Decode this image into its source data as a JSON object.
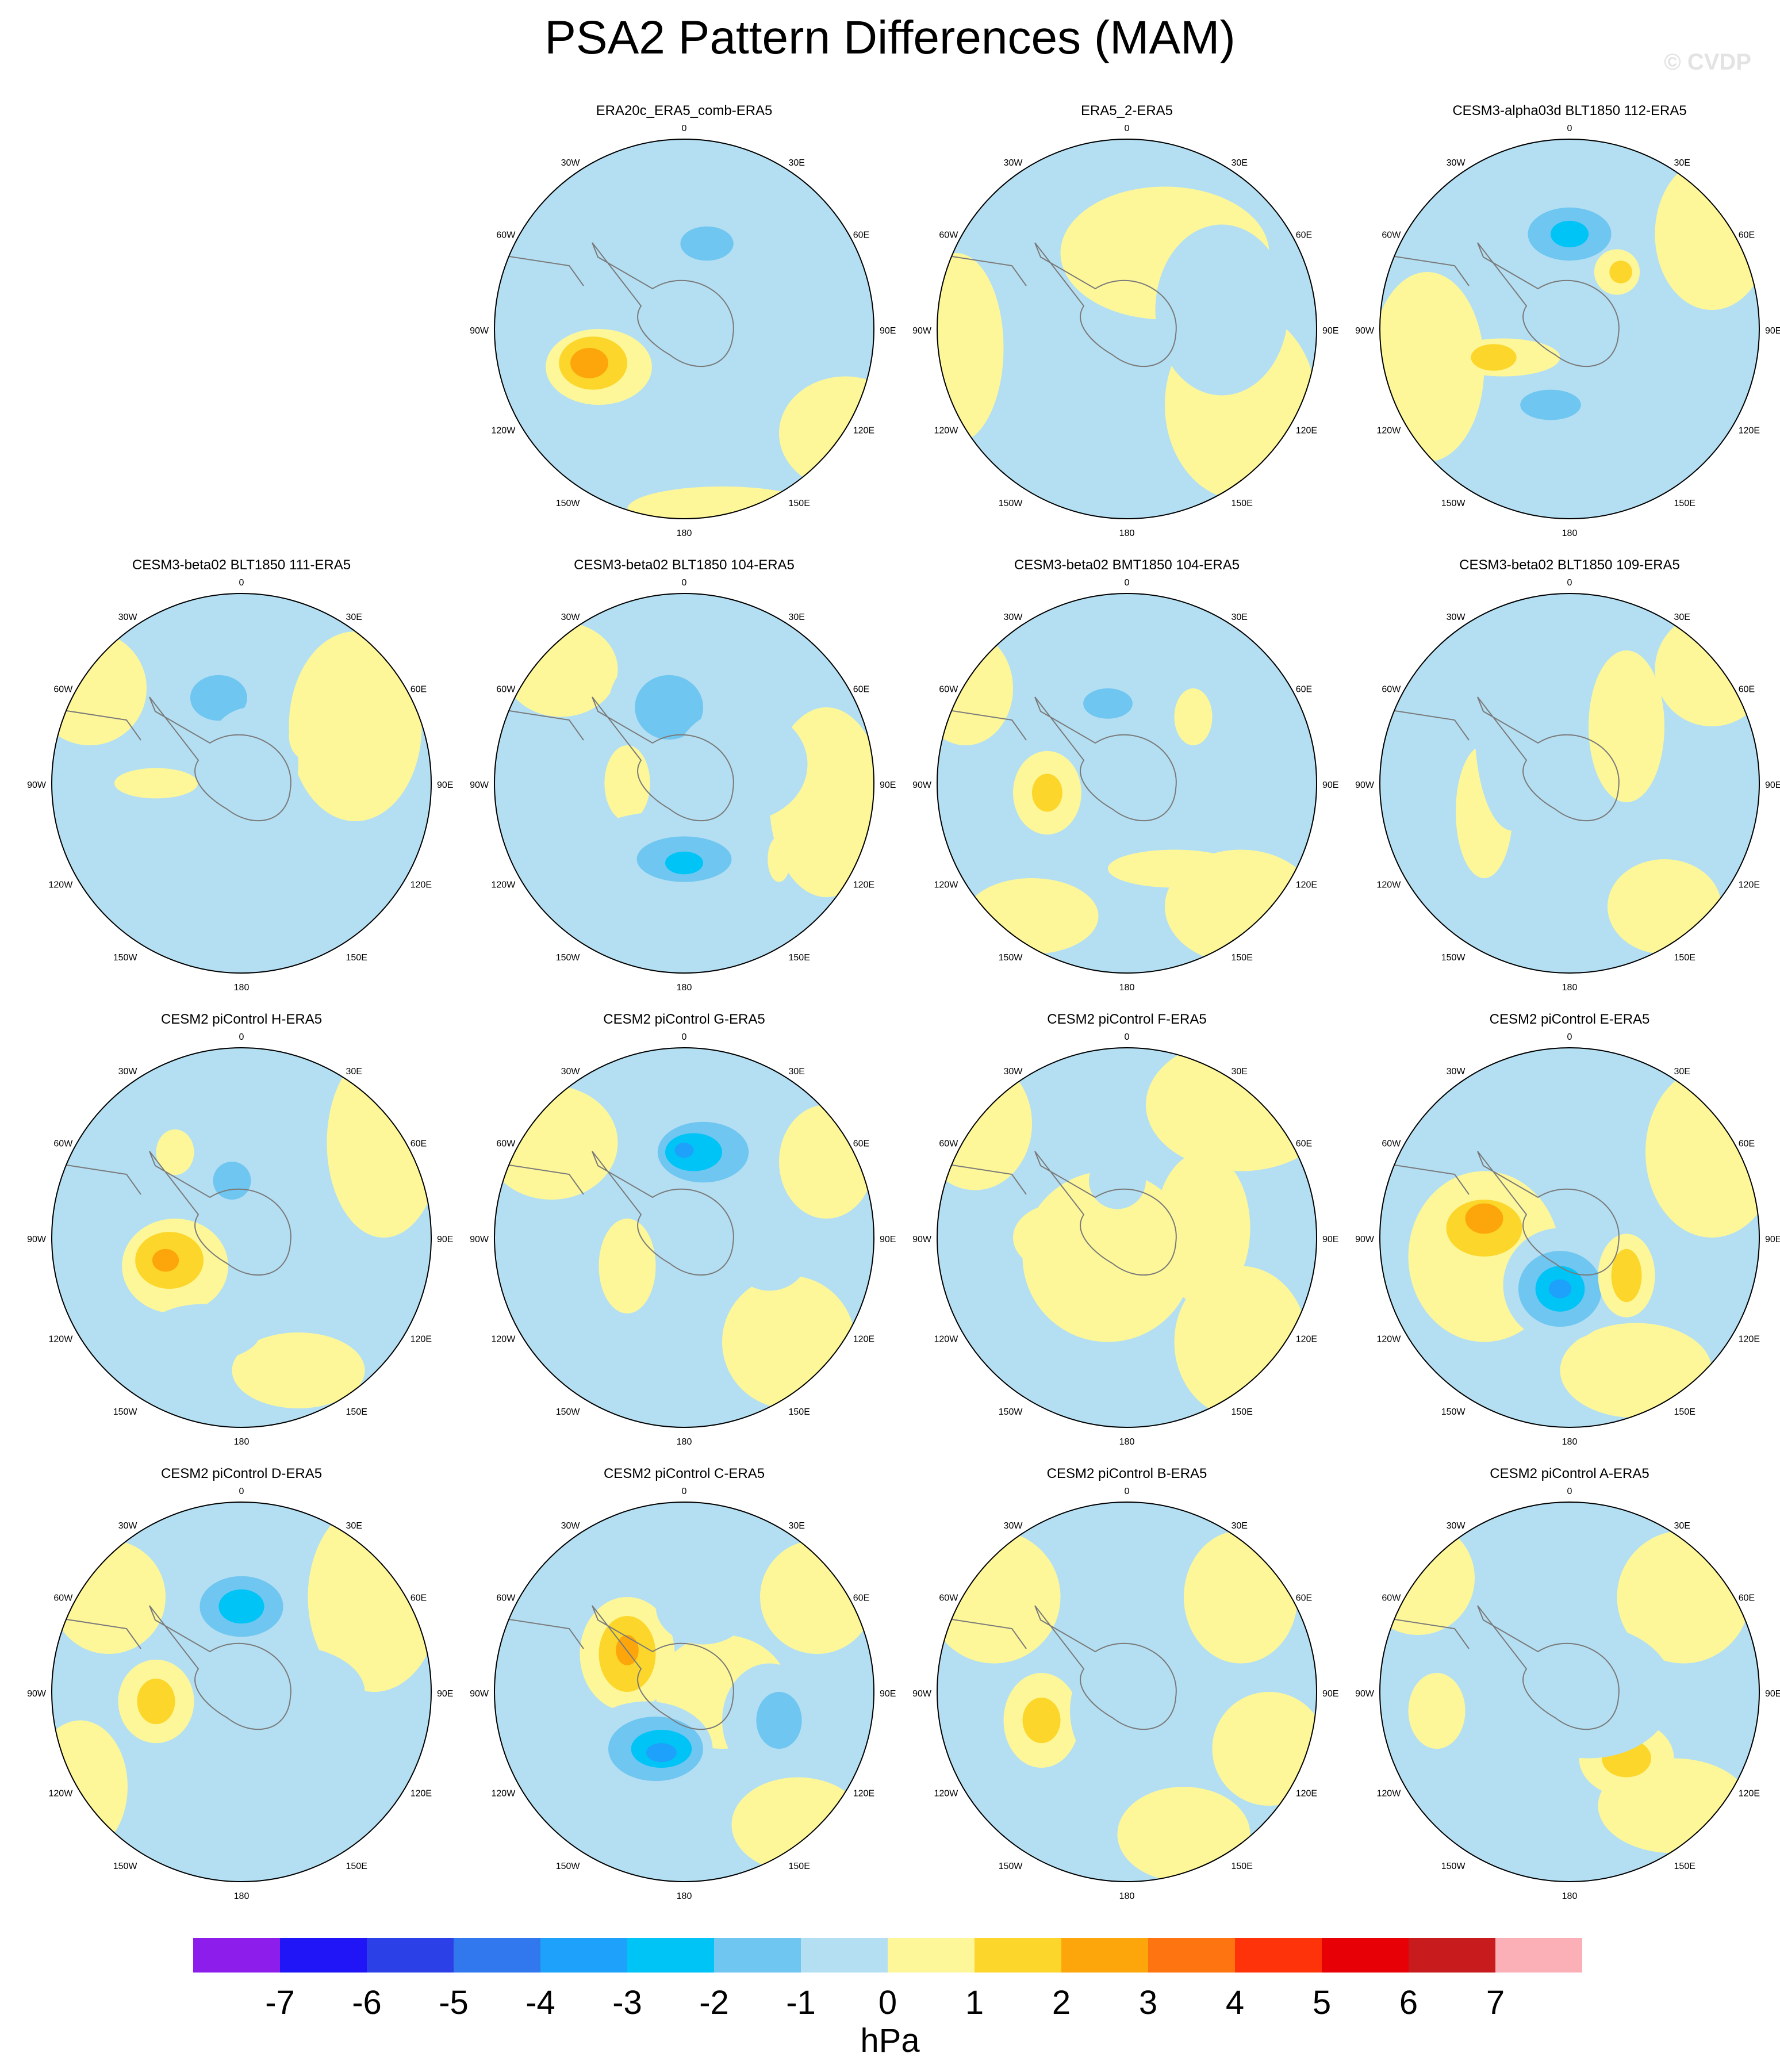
{
  "title": "PSA2 Pattern Differences (MAM)",
  "watermark": "© CVDP",
  "map_labels": {
    "top": "0",
    "bottom": "180",
    "left": "90W",
    "right": "90E",
    "ul1": "30W",
    "ur1": "30E",
    "ul2": "60W",
    "ur2": "60E",
    "ll1": "120W",
    "lr1": "120E",
    "ll2": "150W",
    "lr2": "150E"
  },
  "panels": [
    {
      "title": "ERA20c_ERA5_comb-ERA5",
      "blobs": [
        [
          -0.45,
          0.2,
          0.28,
          0.2,
          1
        ],
        [
          -0.48,
          0.18,
          0.18,
          0.14,
          2
        ],
        [
          -0.5,
          0.18,
          0.1,
          0.08,
          3
        ],
        [
          0.1,
          -0.45,
          0.25,
          0.16,
          -1
        ],
        [
          0.12,
          -0.45,
          0.14,
          0.09,
          -2
        ],
        [
          0.1,
          0.5,
          0.4,
          0.15,
          -1
        ]
      ],
      "land": [
        [
          0.85,
          0.55,
          0.35,
          0.3
        ],
        [
          0.2,
          0.95,
          0.5,
          0.12
        ]
      ]
    },
    {
      "title": "ERA5_2-ERA5",
      "blobs": [
        [
          0.2,
          -0.4,
          0.55,
          0.35,
          1
        ],
        [
          -0.1,
          0.5,
          0.3,
          0.25,
          -1
        ],
        [
          0.5,
          -0.1,
          0.35,
          0.45,
          -1
        ]
      ],
      "land": [
        [
          0.6,
          0.4,
          0.4,
          0.5
        ],
        [
          -0.9,
          0.1,
          0.25,
          0.5
        ]
      ]
    },
    {
      "title": "CESM3-alpha03d BLT1850 112-ERA5",
      "blobs": [
        [
          0.0,
          -0.5,
          0.35,
          0.22,
          -1
        ],
        [
          0.0,
          -0.5,
          0.22,
          0.14,
          -2
        ],
        [
          0.0,
          -0.5,
          0.1,
          0.07,
          -3
        ],
        [
          -0.35,
          0.15,
          0.3,
          0.1,
          1
        ],
        [
          -0.4,
          0.15,
          0.12,
          0.07,
          2
        ],
        [
          -0.1,
          0.4,
          0.3,
          0.14,
          -1
        ],
        [
          -0.1,
          0.4,
          0.16,
          0.08,
          -2
        ],
        [
          0.5,
          0.1,
          0.15,
          0.22,
          -1
        ],
        [
          0.25,
          -0.3,
          0.12,
          0.12,
          1
        ],
        [
          0.27,
          -0.3,
          0.06,
          0.06,
          2
        ]
      ],
      "land": [
        [
          -0.75,
          0.2,
          0.3,
          0.5
        ],
        [
          0.75,
          -0.5,
          0.3,
          0.4
        ]
      ]
    },
    {
      "title": "CESM3-beta02 BLT1850 111-ERA5",
      "blobs": [
        [
          -0.1,
          -0.45,
          0.3,
          0.22,
          -1
        ],
        [
          -0.12,
          -0.45,
          0.15,
          0.12,
          -2
        ],
        [
          -0.45,
          0.0,
          0.22,
          0.08,
          1
        ],
        [
          -0.2,
          0.35,
          0.55,
          0.18,
          -1
        ],
        [
          0.05,
          -0.1,
          0.25,
          0.3,
          -1
        ],
        [
          0.35,
          -0.25,
          0.1,
          0.13,
          1
        ]
      ],
      "land": [
        [
          -0.8,
          -0.5,
          0.3,
          0.3
        ],
        [
          0.6,
          -0.3,
          0.35,
          0.5
        ]
      ]
    },
    {
      "title": "CESM3-beta02 BLT1850 104-ERA5",
      "blobs": [
        [
          -0.1,
          -0.4,
          0.3,
          0.3,
          -1
        ],
        [
          -0.08,
          -0.4,
          0.18,
          0.17,
          -2
        ],
        [
          -0.3,
          0.0,
          0.12,
          0.2,
          1
        ],
        [
          -0.1,
          0.35,
          0.45,
          0.2,
          -1
        ],
        [
          0.0,
          0.4,
          0.25,
          0.12,
          -2
        ],
        [
          0.0,
          0.42,
          0.1,
          0.06,
          -3
        ],
        [
          0.5,
          0.4,
          0.06,
          0.12,
          1
        ],
        [
          0.3,
          -0.1,
          0.35,
          0.3,
          -1
        ]
      ],
      "land": [
        [
          -0.65,
          -0.6,
          0.3,
          0.25
        ],
        [
          0.75,
          0.1,
          0.3,
          0.5
        ]
      ]
    },
    {
      "title": "CESM3-beta02 BMT1850 104-ERA5",
      "blobs": [
        [
          -0.1,
          -0.4,
          0.28,
          0.2,
          -1
        ],
        [
          -0.1,
          -0.42,
          0.13,
          0.08,
          -2
        ],
        [
          -0.42,
          0.05,
          0.18,
          0.22,
          1
        ],
        [
          -0.42,
          0.05,
          0.08,
          0.1,
          2
        ],
        [
          0.25,
          0.45,
          0.35,
          0.1,
          1
        ],
        [
          0.5,
          0.0,
          0.12,
          0.1,
          -1
        ],
        [
          0.35,
          -0.35,
          0.1,
          0.15,
          1
        ],
        [
          0.0,
          0.2,
          0.15,
          0.15,
          -1
        ]
      ],
      "land": [
        [
          -0.85,
          -0.5,
          0.25,
          0.3
        ],
        [
          0.6,
          0.65,
          0.4,
          0.3
        ],
        [
          -0.5,
          0.7,
          0.35,
          0.2
        ]
      ]
    },
    {
      "title": "CESM3-beta02 BLT1850 109-ERA5",
      "blobs": [
        [
          0.55,
          0.0,
          0.18,
          0.32,
          -1
        ],
        [
          0.0,
          -0.5,
          0.2,
          0.15,
          -1
        ],
        [
          -0.45,
          0.15,
          0.15,
          0.35,
          1
        ],
        [
          0.0,
          0.35,
          0.12,
          0.15,
          -1
        ],
        [
          -0.3,
          -0.3,
          0.2,
          0.55,
          -1
        ],
        [
          0.3,
          -0.3,
          0.2,
          0.4,
          1
        ]
      ],
      "land": [
        [
          0.75,
          -0.6,
          0.3,
          0.3
        ],
        [
          0.5,
          0.65,
          0.3,
          0.25
        ]
      ]
    },
    {
      "title": "CESM2 piControl H-ERA5",
      "blobs": [
        [
          -0.35,
          0.15,
          0.28,
          0.25,
          1
        ],
        [
          -0.38,
          0.12,
          0.18,
          0.15,
          2
        ],
        [
          -0.4,
          0.12,
          0.07,
          0.06,
          3
        ],
        [
          0.0,
          -0.3,
          0.22,
          0.2,
          -1
        ],
        [
          -0.05,
          -0.3,
          0.1,
          0.1,
          -2
        ],
        [
          -0.2,
          0.5,
          0.3,
          0.15,
          -1
        ],
        [
          -0.35,
          -0.45,
          0.1,
          0.12,
          1
        ]
      ],
      "land": [
        [
          0.75,
          -0.5,
          0.3,
          0.5
        ],
        [
          0.3,
          0.7,
          0.35,
          0.2
        ]
      ]
    },
    {
      "title": "CESM2 piControl G-ERA5",
      "blobs": [
        [
          0.1,
          -0.45,
          0.35,
          0.25,
          -1
        ],
        [
          0.1,
          -0.45,
          0.24,
          0.16,
          -2
        ],
        [
          0.05,
          -0.45,
          0.15,
          0.1,
          -3
        ],
        [
          0.0,
          -0.46,
          0.05,
          0.04,
          -4
        ],
        [
          -0.3,
          0.15,
          0.15,
          0.25,
          1
        ],
        [
          0.45,
          0.1,
          0.2,
          0.18,
          -1
        ],
        [
          0.15,
          0.1,
          0.2,
          0.2,
          -1
        ]
      ],
      "land": [
        [
          -0.7,
          -0.5,
          0.35,
          0.3
        ],
        [
          0.55,
          0.55,
          0.35,
          0.35
        ],
        [
          0.75,
          -0.4,
          0.25,
          0.3
        ]
      ]
    },
    {
      "title": "CESM2 piControl F-ERA5",
      "blobs": [
        [
          -0.35,
          0.0,
          0.25,
          0.18,
          1
        ],
        [
          -0.1,
          0.1,
          0.45,
          0.45,
          1
        ],
        [
          0.4,
          -0.05,
          0.25,
          0.4,
          1
        ],
        [
          -0.05,
          -0.3,
          0.15,
          0.15,
          -1
        ]
      ],
      "land": [
        [
          0.6,
          -0.7,
          0.5,
          0.35
        ],
        [
          -0.8,
          -0.6,
          0.3,
          0.35
        ],
        [
          0.6,
          0.55,
          0.35,
          0.4
        ]
      ]
    },
    {
      "title": "CESM2 piControl E-ERA5",
      "blobs": [
        [
          -0.45,
          0.1,
          0.4,
          0.45,
          1
        ],
        [
          -0.45,
          -0.05,
          0.2,
          0.15,
          2
        ],
        [
          -0.45,
          -0.1,
          0.1,
          0.08,
          3
        ],
        [
          -0.05,
          0.25,
          0.3,
          0.3,
          -1
        ],
        [
          -0.05,
          0.27,
          0.22,
          0.2,
          -2
        ],
        [
          -0.05,
          0.27,
          0.13,
          0.12,
          -3
        ],
        [
          -0.05,
          0.27,
          0.06,
          0.05,
          -4
        ],
        [
          0.3,
          0.2,
          0.15,
          0.22,
          1
        ],
        [
          0.3,
          0.2,
          0.08,
          0.14,
          2
        ]
      ],
      "land": [
        [
          0.75,
          -0.45,
          0.35,
          0.45
        ],
        [
          0.35,
          0.7,
          0.4,
          0.25
        ]
      ]
    },
    {
      "title": "CESM2 piControl D-ERA5",
      "blobs": [
        [
          0.0,
          -0.45,
          0.3,
          0.25,
          -1
        ],
        [
          0.0,
          -0.45,
          0.22,
          0.16,
          -2
        ],
        [
          0.0,
          -0.45,
          0.12,
          0.09,
          -3
        ],
        [
          -0.45,
          0.05,
          0.2,
          0.22,
          1
        ],
        [
          -0.45,
          0.05,
          0.1,
          0.12,
          2
        ],
        [
          0.2,
          0.0,
          0.45,
          0.25,
          -1
        ],
        [
          -0.15,
          0.55,
          0.15,
          0.08,
          -1
        ]
      ],
      "land": [
        [
          -0.7,
          -0.5,
          0.3,
          0.3
        ],
        [
          0.7,
          -0.5,
          0.35,
          0.5
        ],
        [
          -0.85,
          0.5,
          0.25,
          0.35
        ]
      ]
    },
    {
      "title": "CESM2 piControl C-ERA5",
      "blobs": [
        [
          -0.3,
          -0.2,
          0.25,
          0.3,
          1
        ],
        [
          -0.3,
          -0.2,
          0.15,
          0.2,
          2
        ],
        [
          -0.3,
          -0.22,
          0.06,
          0.08,
          3
        ],
        [
          -0.2,
          0.3,
          0.35,
          0.25,
          -1
        ],
        [
          -0.15,
          0.3,
          0.25,
          0.17,
          -2
        ],
        [
          -0.12,
          0.3,
          0.16,
          0.1,
          -3
        ],
        [
          -0.12,
          0.32,
          0.08,
          0.05,
          -4
        ],
        [
          0.45,
          0.15,
          0.25,
          0.3,
          -1
        ],
        [
          0.5,
          0.15,
          0.12,
          0.15,
          -2
        ],
        [
          0.1,
          -0.45,
          0.25,
          0.2,
          -1
        ]
      ],
      "land": [
        [
          0.2,
          0.0,
          0.35,
          0.3
        ],
        [
          0.7,
          -0.5,
          0.3,
          0.3
        ],
        [
          0.6,
          0.7,
          0.35,
          0.25
        ]
      ]
    },
    {
      "title": "CESM2 piControl B-ERA5",
      "blobs": [
        [
          -0.45,
          0.15,
          0.2,
          0.25,
          1
        ],
        [
          -0.45,
          0.15,
          0.1,
          0.12,
          2
        ],
        [
          0.0,
          0.1,
          0.3,
          0.35,
          -1
        ],
        [
          0.1,
          -0.1,
          0.2,
          0.2,
          -1
        ],
        [
          0.2,
          -0.1,
          0.3,
          0.4,
          -1
        ],
        [
          0.6,
          -0.5,
          0.3,
          0.35,
          1
        ]
      ],
      "land": [
        [
          -0.7,
          -0.5,
          0.35,
          0.35
        ],
        [
          0.3,
          0.75,
          0.35,
          0.25
        ],
        [
          0.75,
          0.3,
          0.3,
          0.3
        ]
      ]
    },
    {
      "title": "CESM2 piControl A-ERA5",
      "blobs": [
        [
          -0.05,
          -0.45,
          0.2,
          0.15,
          -1
        ],
        [
          -0.7,
          0.1,
          0.15,
          0.2,
          1
        ],
        [
          0.3,
          0.35,
          0.25,
          0.2,
          1
        ],
        [
          0.3,
          0.35,
          0.13,
          0.1,
          2
        ],
        [
          0.1,
          0.0,
          0.45,
          0.35,
          -1
        ]
      ],
      "land": [
        [
          0.6,
          -0.5,
          0.35,
          0.35
        ],
        [
          -0.8,
          -0.6,
          0.3,
          0.3
        ],
        [
          0.55,
          0.6,
          0.4,
          0.25
        ]
      ]
    }
  ],
  "colorbar": {
    "unit": "hPa",
    "labels": [
      "-7",
      "-6",
      "-5",
      "-4",
      "-3",
      "-2",
      "-1",
      "0",
      "1",
      "2",
      "3",
      "4",
      "5",
      "6",
      "7"
    ],
    "colors": [
      "#8c1dea",
      "#2015f6",
      "#2b40e6",
      "#3178ee",
      "#1ea1fa",
      "#00c4f6",
      "#6fc6f0",
      "#b4dff2",
      "#fdf799",
      "#fcd62a",
      "#fca60c",
      "#fd7411",
      "#fe3309",
      "#e80007",
      "#c81b1d",
      "#fab0b6"
    ]
  }
}
